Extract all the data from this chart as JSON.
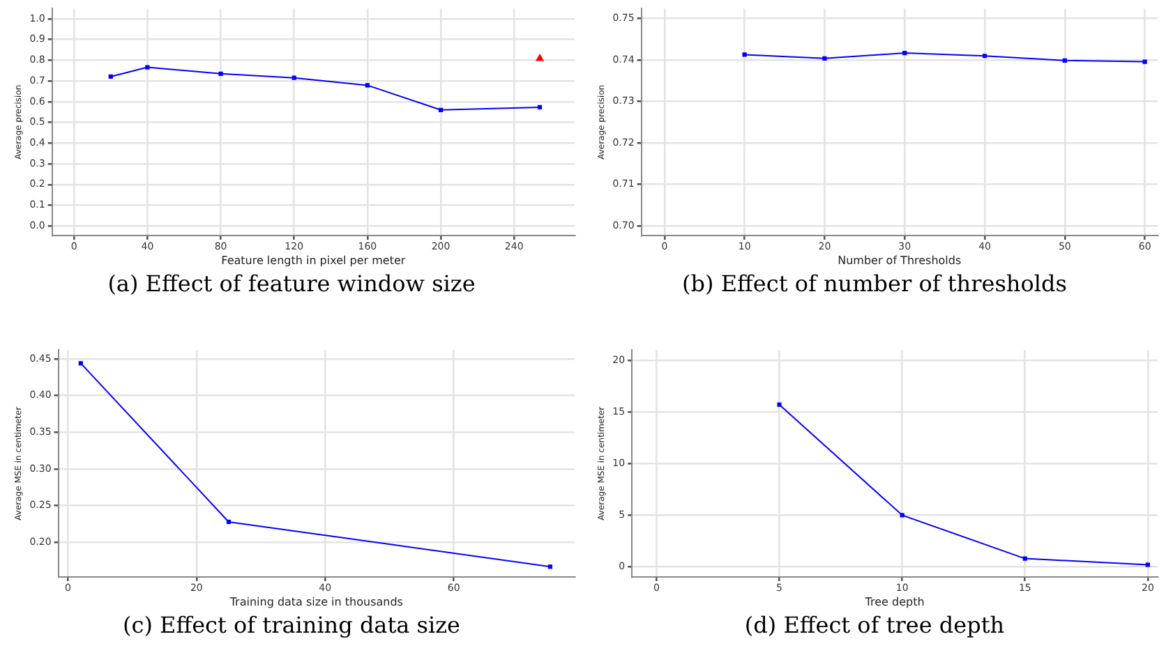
{
  "chart_data": [
    {
      "type": "line",
      "title": "(a) Effect of feature window size",
      "xlabel": "Feature length in pixel per meter",
      "ylabel": "Average precision",
      "marker": "square",
      "grid": true,
      "xlim": [
        -12,
        273
      ],
      "xticks": [
        0,
        40,
        80,
        120,
        160,
        200,
        240
      ],
      "ylim": [
        -0.046,
        1.049
      ],
      "yticks": [
        {
          "value": 0,
          "label": "0.0"
        },
        0.1,
        0.2,
        0.3,
        0.4,
        0.5,
        0.6,
        0.7,
        0.8,
        0.9,
        {
          "value": 1,
          "label": "1.0"
        }
      ],
      "series": [
        {
          "color": "#0000ff",
          "x": [
            20,
            40,
            80,
            120,
            160,
            200,
            254
          ],
          "values": [
            0.721,
            0.766,
            0.735,
            0.715,
            0.679,
            0.56,
            0.573
          ]
        },
        {
          "type": "scatter",
          "marker": "triangle",
          "color": "#ff0000",
          "x": [
            254
          ],
          "values": [
            0.808
          ]
        }
      ]
    },
    {
      "type": "line",
      "title": "(b) Effect of number of thresholds",
      "xlabel": "Number of Thresholds",
      "ylabel": "Average precision",
      "marker": "square",
      "grid": true,
      "xlim": [
        -2.9,
        61.6
      ],
      "xticks": [
        0,
        10,
        20,
        30,
        40,
        50,
        60
      ],
      "ylim": [
        0.6977,
        0.7524
      ],
      "yticks": [
        {
          "value": 0.7,
          "label": "0.70"
        },
        0.71,
        0.72,
        0.73,
        0.74,
        0.75
      ],
      "series": [
        {
          "color": "#0000ff",
          "x": [
            10,
            20,
            30,
            40,
            50,
            60
          ],
          "values": [
            0.7413,
            0.7404,
            0.7417,
            0.741,
            0.7399,
            0.7396
          ]
        }
      ]
    },
    {
      "type": "line",
      "title": "(c) Effect of training data size",
      "xlabel": "Training data size in thousands",
      "ylabel": "Average MSE in centimeter",
      "marker": "square",
      "grid": true,
      "xlim": [
        -1.5,
        78.8
      ],
      "xticks": [
        0,
        20,
        40,
        60
      ],
      "ylim": [
        0.153,
        0.462
      ],
      "yticks": [
        {
          "value": 0.2,
          "label": "0.20"
        },
        0.25,
        {
          "value": 0.3,
          "label": "0.30"
        },
        0.35,
        {
          "value": 0.4,
          "label": "0.40"
        },
        0.45
      ],
      "series": [
        {
          "color": "#0000ff",
          "x": [
            2,
            25,
            75
          ],
          "values": [
            0.444,
            0.228,
            0.167
          ]
        }
      ]
    },
    {
      "type": "line",
      "title": "(d) Effect of tree depth",
      "xlabel": "Tree depth",
      "ylabel": "Average MSE in centimeter",
      "marker": "square",
      "grid": true,
      "xlim": [
        -1,
        20.4
      ],
      "xticks": [
        0,
        5,
        10,
        15,
        20
      ],
      "ylim": [
        -0.98,
        20.98
      ],
      "yticks": [
        0,
        5,
        10,
        15,
        20
      ],
      "series": [
        {
          "color": "#0000ff",
          "x": [
            5,
            10,
            15,
            20
          ],
          "values": [
            15.7,
            5,
            0.8,
            0.2
          ]
        }
      ]
    }
  ]
}
